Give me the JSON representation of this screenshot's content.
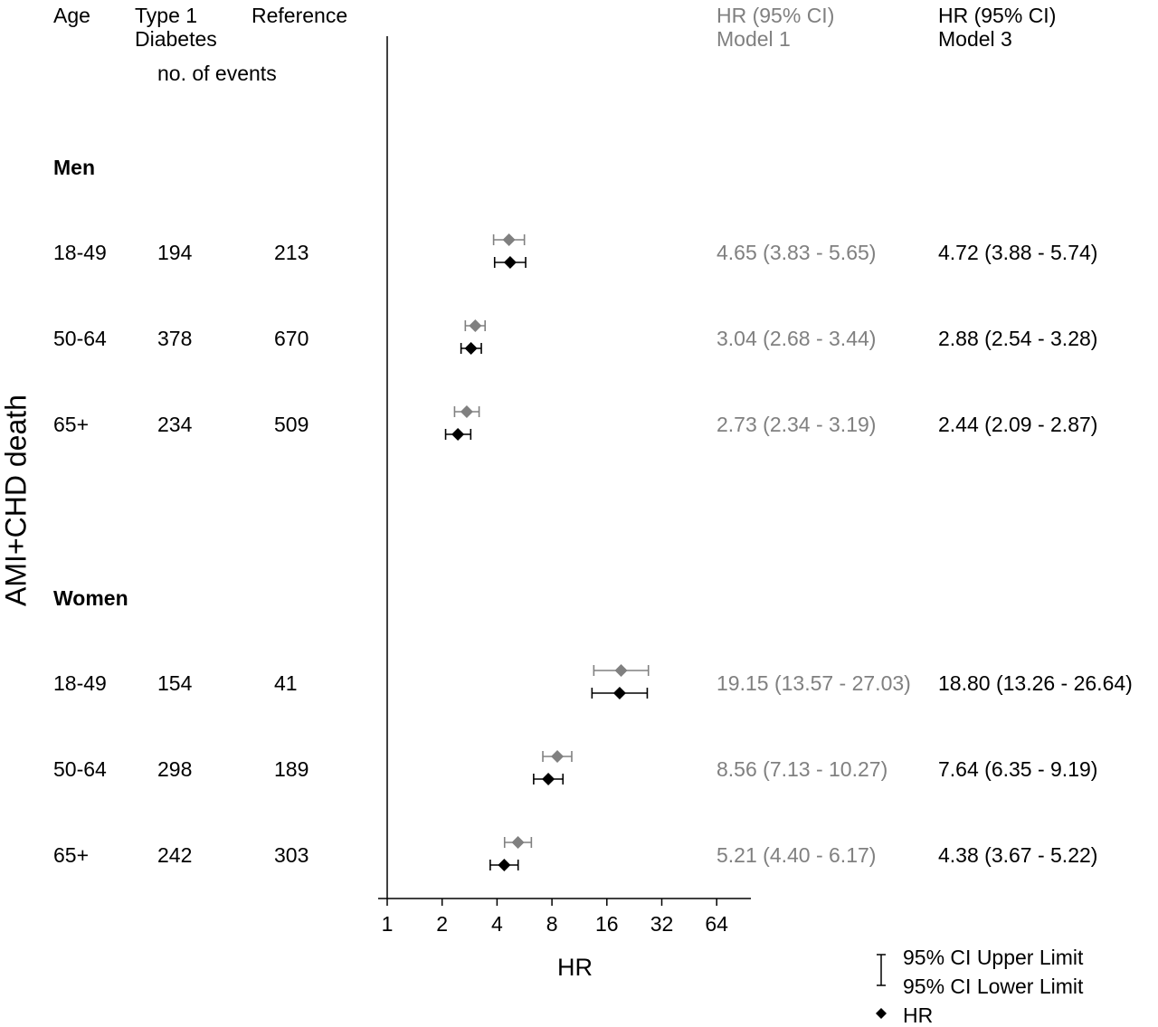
{
  "header": {
    "age": "Age",
    "type1_line1": "Type 1",
    "type1_line2": "Diabetes",
    "reference": "Reference",
    "events": "no. of events",
    "model1_line1": "HR (95% CI)",
    "model1_line2": "Model 1",
    "model3_line1": "HR (95% CI)",
    "model3_line2": "Model 3"
  },
  "y_axis_label": "AMI+CHD death",
  "groups": {
    "men": "Men",
    "women": "Women"
  },
  "rows": [
    {
      "age": "18-49",
      "t1": "194",
      "ref": "213",
      "m1": "4.65 (3.83 - 5.65)",
      "m3": "4.72 (3.88 - 5.74)"
    },
    {
      "age": "50-64",
      "t1": "378",
      "ref": "670",
      "m1": "3.04 (2.68 - 3.44)",
      "m3": "2.88 (2.54 - 3.28)"
    },
    {
      "age": "65+",
      "t1": "234",
      "ref": "509",
      "m1": "2.73 (2.34 - 3.19)",
      "m3": "2.44 (2.09 - 2.87)"
    },
    {
      "age": "18-49",
      "t1": "154",
      "ref": "41",
      "m1": "19.15 (13.57 - 27.03)",
      "m3": "18.80 (13.26 - 26.64)"
    },
    {
      "age": "50-64",
      "t1": "298",
      "ref": "189",
      "m1": "8.56 (7.13 - 10.27)",
      "m3": "7.64 (6.35 - 9.19)"
    },
    {
      "age": "65+",
      "t1": "242",
      "ref": "303",
      "m1": "5.21 (4.40 - 6.17)",
      "m3": "4.38 (3.67 - 5.22)"
    }
  ],
  "legend": {
    "upper": "95% CI Upper Limit",
    "lower": "95% CI Lower Limit",
    "hr": "HR"
  },
  "chart_data": {
    "type": "scatter",
    "xlabel": "HR",
    "x_scale": "log2",
    "xlim": [
      1,
      90
    ],
    "xticks": [
      1,
      2,
      4,
      8,
      16,
      32,
      64
    ],
    "series": [
      {
        "name": "Model 1",
        "color": "#808080",
        "points": [
          {
            "hr": 4.65,
            "lo": 3.83,
            "hi": 5.65
          },
          {
            "hr": 3.04,
            "lo": 2.68,
            "hi": 3.44
          },
          {
            "hr": 2.73,
            "lo": 2.34,
            "hi": 3.19
          },
          {
            "hr": 19.15,
            "lo": 13.57,
            "hi": 27.03
          },
          {
            "hr": 8.56,
            "lo": 7.13,
            "hi": 10.27
          },
          {
            "hr": 5.21,
            "lo": 4.4,
            "hi": 6.17
          }
        ]
      },
      {
        "name": "Model 3",
        "color": "#000000",
        "points": [
          {
            "hr": 4.72,
            "lo": 3.88,
            "hi": 5.74
          },
          {
            "hr": 2.88,
            "lo": 2.54,
            "hi": 3.28
          },
          {
            "hr": 2.44,
            "lo": 2.09,
            "hi": 2.87
          },
          {
            "hr": 18.8,
            "lo": 13.26,
            "hi": 26.64
          },
          {
            "hr": 7.64,
            "lo": 6.35,
            "hi": 9.19
          },
          {
            "hr": 4.38,
            "lo": 3.67,
            "hi": 5.22
          }
        ]
      }
    ]
  }
}
